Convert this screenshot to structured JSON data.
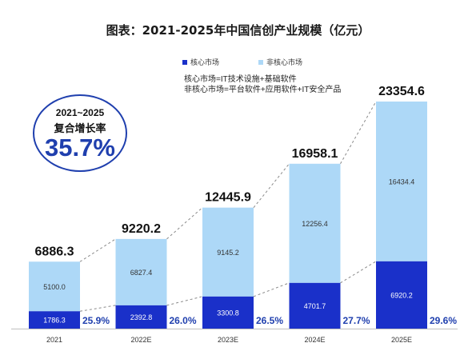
{
  "title": "图表：2021-2025年中国信创产业规模（亿元）",
  "legend": {
    "core_label": "核心市场",
    "noncore_label": "非核心市场",
    "core_color": "#1a30c9",
    "noncore_color": "#add8f7"
  },
  "definitions": {
    "core": "核心市场=IT技术设施+基础软件",
    "noncore": "非核心市场=平台软件+应用软件+IT安全产品"
  },
  "cagr": {
    "range": "2021~2025",
    "label": "复合增长率",
    "value": "35.7%"
  },
  "chart_data": {
    "type": "bar",
    "stacked": true,
    "categories": [
      "2021",
      "2022E",
      "2023E",
      "2024E",
      "2025E"
    ],
    "series": [
      {
        "name": "核心市场",
        "values": [
          1786.3,
          2392.8,
          3300.8,
          4701.7,
          6920.2
        ],
        "color": "#1a30c9"
      },
      {
        "name": "非核心市场",
        "values": [
          5100.0,
          6827.4,
          9145.2,
          12256.4,
          16434.4
        ],
        "color": "#add8f7"
      }
    ],
    "value_labels": {
      "core": [
        "1786.3",
        "2392.8",
        "3300.8",
        "4701.7",
        "6920.2"
      ],
      "noncore": [
        "5100.0",
        "6827.4",
        "9145.2",
        "12256.4",
        "16434.4"
      ]
    },
    "totals": [
      "6886.3",
      "9220.2",
      "12445.9",
      "16958.1",
      "23354.6"
    ],
    "core_share": [
      "25.9%",
      "26.0%",
      "26.5%",
      "27.7%",
      "29.6%"
    ],
    "ylim": [
      0,
      25000
    ],
    "grid": false,
    "legend_position": "top"
  }
}
